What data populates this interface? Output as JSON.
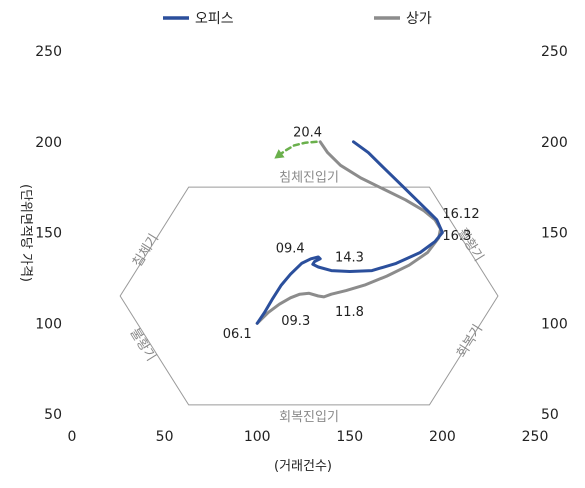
{
  "chart_data": {
    "type": "line",
    "title": "",
    "xlabel": "(거래건수)",
    "ylabel": "(단위면적당 가격)",
    "xlim": [
      0,
      250
    ],
    "ylim": [
      50,
      250
    ],
    "x_ticks": [
      0,
      50,
      100,
      150,
      200,
      250
    ],
    "y_ticks": [
      50,
      100,
      150,
      200,
      250
    ],
    "y_axes": "both",
    "grid": false,
    "legend_position": "top",
    "series": [
      {
        "name": "오피스",
        "color": "#2b4f9c",
        "points": [
          [
            100,
            100
          ],
          [
            104,
            106
          ],
          [
            108,
            113
          ],
          [
            113,
            121
          ],
          [
            118,
            127
          ],
          [
            124,
            133
          ],
          [
            129,
            135.5
          ],
          [
            133,
            136.5
          ],
          [
            134,
            135.5
          ],
          [
            131,
            134
          ],
          [
            130,
            132.5
          ],
          [
            133,
            131
          ],
          [
            140,
            129
          ],
          [
            150,
            128.5
          ],
          [
            162,
            129
          ],
          [
            175,
            133
          ],
          [
            188,
            139
          ],
          [
            196,
            145
          ],
          [
            200,
            150
          ],
          [
            197,
            157
          ],
          [
            192,
            162
          ],
          [
            184,
            170
          ],
          [
            176,
            178
          ],
          [
            168,
            186
          ],
          [
            160,
            194
          ],
          [
            152,
            200
          ]
        ]
      },
      {
        "name": "상가",
        "color": "#8c8c8c",
        "points": [
          [
            100,
            100
          ],
          [
            106,
            106
          ],
          [
            112,
            110.5
          ],
          [
            118,
            114
          ],
          [
            123,
            116
          ],
          [
            128,
            116.5
          ],
          [
            133,
            115
          ],
          [
            136,
            114.5
          ],
          [
            140,
            116
          ],
          [
            148,
            118
          ],
          [
            158,
            121
          ],
          [
            170,
            126
          ],
          [
            182,
            132
          ],
          [
            192,
            139
          ],
          [
            198,
            147
          ],
          [
            199,
            152
          ],
          [
            196,
            157
          ],
          [
            190,
            162
          ],
          [
            180,
            168
          ],
          [
            168,
            174
          ],
          [
            156,
            180
          ],
          [
            145,
            187
          ],
          [
            138,
            194
          ],
          [
            134,
            200
          ]
        ]
      }
    ],
    "dashed_arrow": {
      "color": "#6ab04c",
      "points": [
        [
          132,
          200
        ],
        [
          126,
          199.5
        ],
        [
          120,
          198
        ],
        [
          115,
          195
        ],
        [
          111,
          192
        ]
      ]
    },
    "hexagon": [
      [
        63,
        175
      ],
      [
        193,
        175
      ],
      [
        230,
        115
      ],
      [
        193,
        55
      ],
      [
        63,
        55
      ],
      [
        26,
        115
      ]
    ],
    "phase_labels": [
      {
        "text": "침체진입기",
        "x": 128,
        "y": 180,
        "rotate": 0
      },
      {
        "text": "회복진입기",
        "x": 128,
        "y": 48,
        "rotate": 0
      },
      {
        "text": "침체기",
        "x": 40,
        "y": 140,
        "rotate": -58
      },
      {
        "text": "활황기",
        "x": 215,
        "y": 143,
        "rotate": 58
      },
      {
        "text": "불황기",
        "x": 38,
        "y": 88,
        "rotate": 58
      },
      {
        "text": "회복기",
        "x": 215,
        "y": 90,
        "rotate": -58
      }
    ],
    "annotations": [
      {
        "text": "20.4",
        "x": 135,
        "y": 203,
        "anchor": "end"
      },
      {
        "text": "16.12",
        "x": 200,
        "y": 158,
        "anchor": "start"
      },
      {
        "text": "16.3",
        "x": 200,
        "y": 146,
        "anchor": "start"
      },
      {
        "text": "09.4",
        "x": 110,
        "y": 139,
        "anchor": "start"
      },
      {
        "text": "14.3",
        "x": 142,
        "y": 134,
        "anchor": "start"
      },
      {
        "text": "06.1",
        "x": 97,
        "y": 92,
        "anchor": "end"
      },
      {
        "text": "09.3",
        "x": 113,
        "y": 99,
        "anchor": "start"
      },
      {
        "text": "11.8",
        "x": 142,
        "y": 104,
        "anchor": "start"
      }
    ]
  }
}
